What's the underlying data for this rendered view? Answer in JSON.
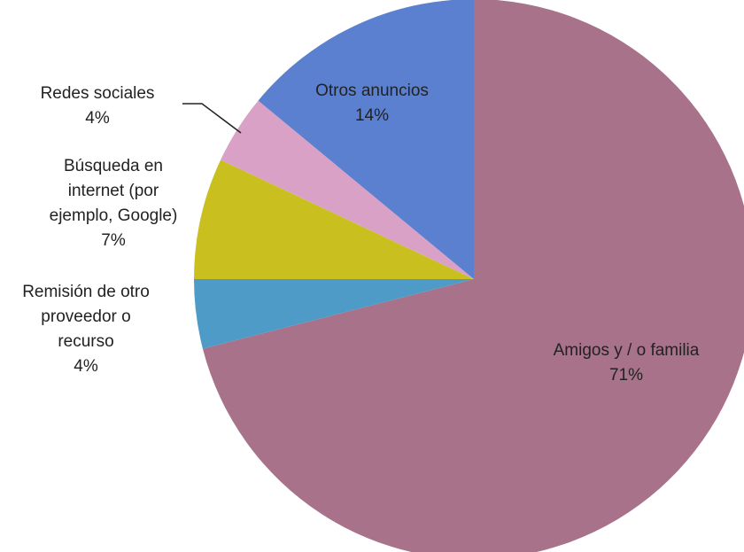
{
  "chart_data": {
    "type": "pie",
    "categories": [
      "Amigos y / o familia",
      "Remisión de otro proveedor o recurso",
      "Búsqueda en internet (por ejemplo, Google)",
      "Redes sociales",
      "Otros anuncios"
    ],
    "values": [
      71,
      4,
      7,
      4,
      14
    ],
    "value_labels": [
      "71%",
      "4%",
      "7%",
      "4%",
      "14%"
    ],
    "colors": [
      "#a7728a",
      "#4d9bc6",
      "#c9bf1f",
      "#d9a1c6",
      "#5b80cf"
    ]
  }
}
